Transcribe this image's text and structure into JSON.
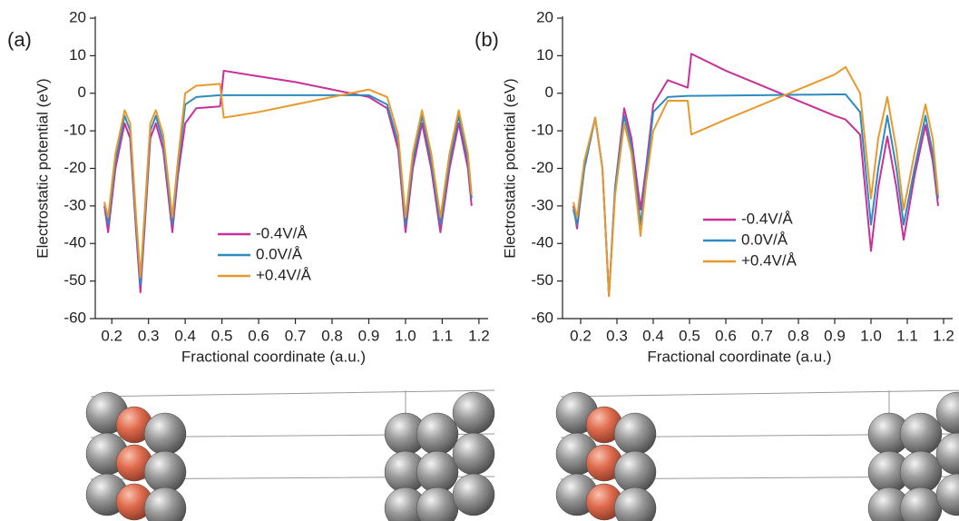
{
  "chart_data": [
    {
      "type": "line",
      "panel_label": "(a)",
      "x_label": "Fractional coordinate (a.u.)",
      "y_label": "Electrostatic potential (eV)",
      "x": [
        0.18,
        0.19,
        0.21,
        0.235,
        0.25,
        0.265,
        0.278,
        0.29,
        0.305,
        0.32,
        0.34,
        0.365,
        0.38,
        0.4,
        0.43,
        0.495,
        0.505,
        0.6,
        0.7,
        0.8,
        0.85,
        0.9,
        0.95,
        0.98,
        1.0,
        1.02,
        1.045,
        1.07,
        1.095,
        1.12,
        1.145,
        1.17,
        1.18
      ],
      "series": [
        {
          "name": "-0.4V/Å",
          "color": "#c8309a",
          "values": [
            -30,
            -37,
            -20,
            -8,
            -12,
            -35,
            -53,
            -35,
            -12,
            -8,
            -15,
            -37,
            -22,
            -8,
            -4,
            -3.5,
            6,
            4.5,
            3,
            1,
            0,
            -1,
            -4,
            -15,
            -37,
            -20,
            -8,
            -20,
            -37,
            -20,
            -8,
            -20,
            -30
          ]
        },
        {
          "name": "0.0V/Å",
          "color": "#2e8bc0",
          "values": [
            -29,
            -35,
            -18,
            -6,
            -10,
            -33,
            -51,
            -33,
            -10,
            -6,
            -13,
            -35,
            -20,
            -3,
            -1,
            -0.5,
            -0.5,
            -0.5,
            -0.5,
            -0.5,
            -0.5,
            -0.5,
            -3,
            -13,
            -35,
            -18,
            -6,
            -18,
            -35,
            -18,
            -6,
            -18,
            -28
          ]
        },
        {
          "name": "+0.4V/Å",
          "color": "#e69a2e",
          "values": [
            -29,
            -33,
            -16,
            -4.5,
            -8,
            -31,
            -49,
            -31,
            -8,
            -4.5,
            -11,
            -33,
            -18,
            0,
            2,
            2.5,
            -6.5,
            -5,
            -3,
            -1,
            0,
            1,
            -1,
            -11,
            -33,
            -16,
            -4.5,
            -16,
            -33,
            -16,
            -4.5,
            -16,
            -27
          ]
        }
      ],
      "xlim": [
        0.155,
        1.225
      ],
      "xticks": [
        0.2,
        0.3,
        0.4,
        0.5,
        0.6,
        0.7,
        0.8,
        0.9,
        {
          "value": 1,
          "label": "1.0"
        },
        1.1,
        1.2
      ],
      "ylim": [
        -60,
        20
      ],
      "yticks": [
        -60,
        -50,
        -40,
        -30,
        -20,
        -10,
        0,
        10,
        20
      ],
      "legend_loc": "center"
    },
    {
      "type": "line",
      "panel_label": "(b)",
      "x_label": "Fractional coordinate (a.u.)",
      "y_label": "Electrostatic potential (eV)",
      "x": [
        0.18,
        0.19,
        0.21,
        0.24,
        0.26,
        0.278,
        0.295,
        0.32,
        0.34,
        0.365,
        0.38,
        0.4,
        0.44,
        0.495,
        0.505,
        0.6,
        0.7,
        0.8,
        0.9,
        0.93,
        0.97,
        1.0,
        1.02,
        1.045,
        1.07,
        1.09,
        1.12,
        1.15,
        1.17,
        1.185
      ],
      "series": [
        {
          "name": "-0.4V/Å",
          "color": "#c8309a",
          "values": [
            -30,
            -36,
            -20,
            -6.5,
            -20,
            -54,
            -25,
            -4,
            -12,
            -31,
            -20,
            -3,
            3.5,
            1.5,
            10.5,
            6,
            2,
            -2,
            -6,
            -7,
            -11,
            -42,
            -25,
            -11.5,
            -25,
            -39,
            -22,
            -8.5,
            -18,
            -30
          ]
        },
        {
          "name": "0.0V/Å",
          "color": "#2e8bc0",
          "values": [
            -31,
            -35,
            -20,
            -6.5,
            -20,
            -54,
            -25,
            -6,
            -14,
            -35,
            -22,
            -5,
            -1,
            -0.7,
            -0.7,
            -0.6,
            -0.5,
            -0.4,
            -0.3,
            -0.3,
            -5,
            -35,
            -20,
            -6,
            -20,
            -35,
            -20,
            -6,
            -16,
            -28
          ]
        },
        {
          "name": "+0.4V/Å",
          "color": "#e69a2e",
          "values": [
            -29,
            -33,
            -18,
            -6.5,
            -20,
            -54,
            -27,
            -8,
            -16,
            -38,
            -24,
            -10,
            -2,
            -2,
            -11,
            -7,
            -3,
            1,
            5,
            7,
            0,
            -28,
            -12,
            -1,
            -15,
            -31,
            -16,
            -3,
            -12,
            -27
          ]
        }
      ],
      "xlim": [
        0.15,
        1.225
      ],
      "xticks": [
        0.2,
        0.3,
        0.4,
        0.5,
        0.6,
        0.7,
        0.8,
        0.9,
        {
          "value": 1,
          "label": "1.0"
        },
        1.1,
        1.2
      ],
      "ylim": [
        -60,
        20
      ],
      "yticks": [
        -60,
        -50,
        -40,
        -30,
        -20,
        -10,
        0,
        10,
        20
      ],
      "legend_loc": "center"
    }
  ]
}
